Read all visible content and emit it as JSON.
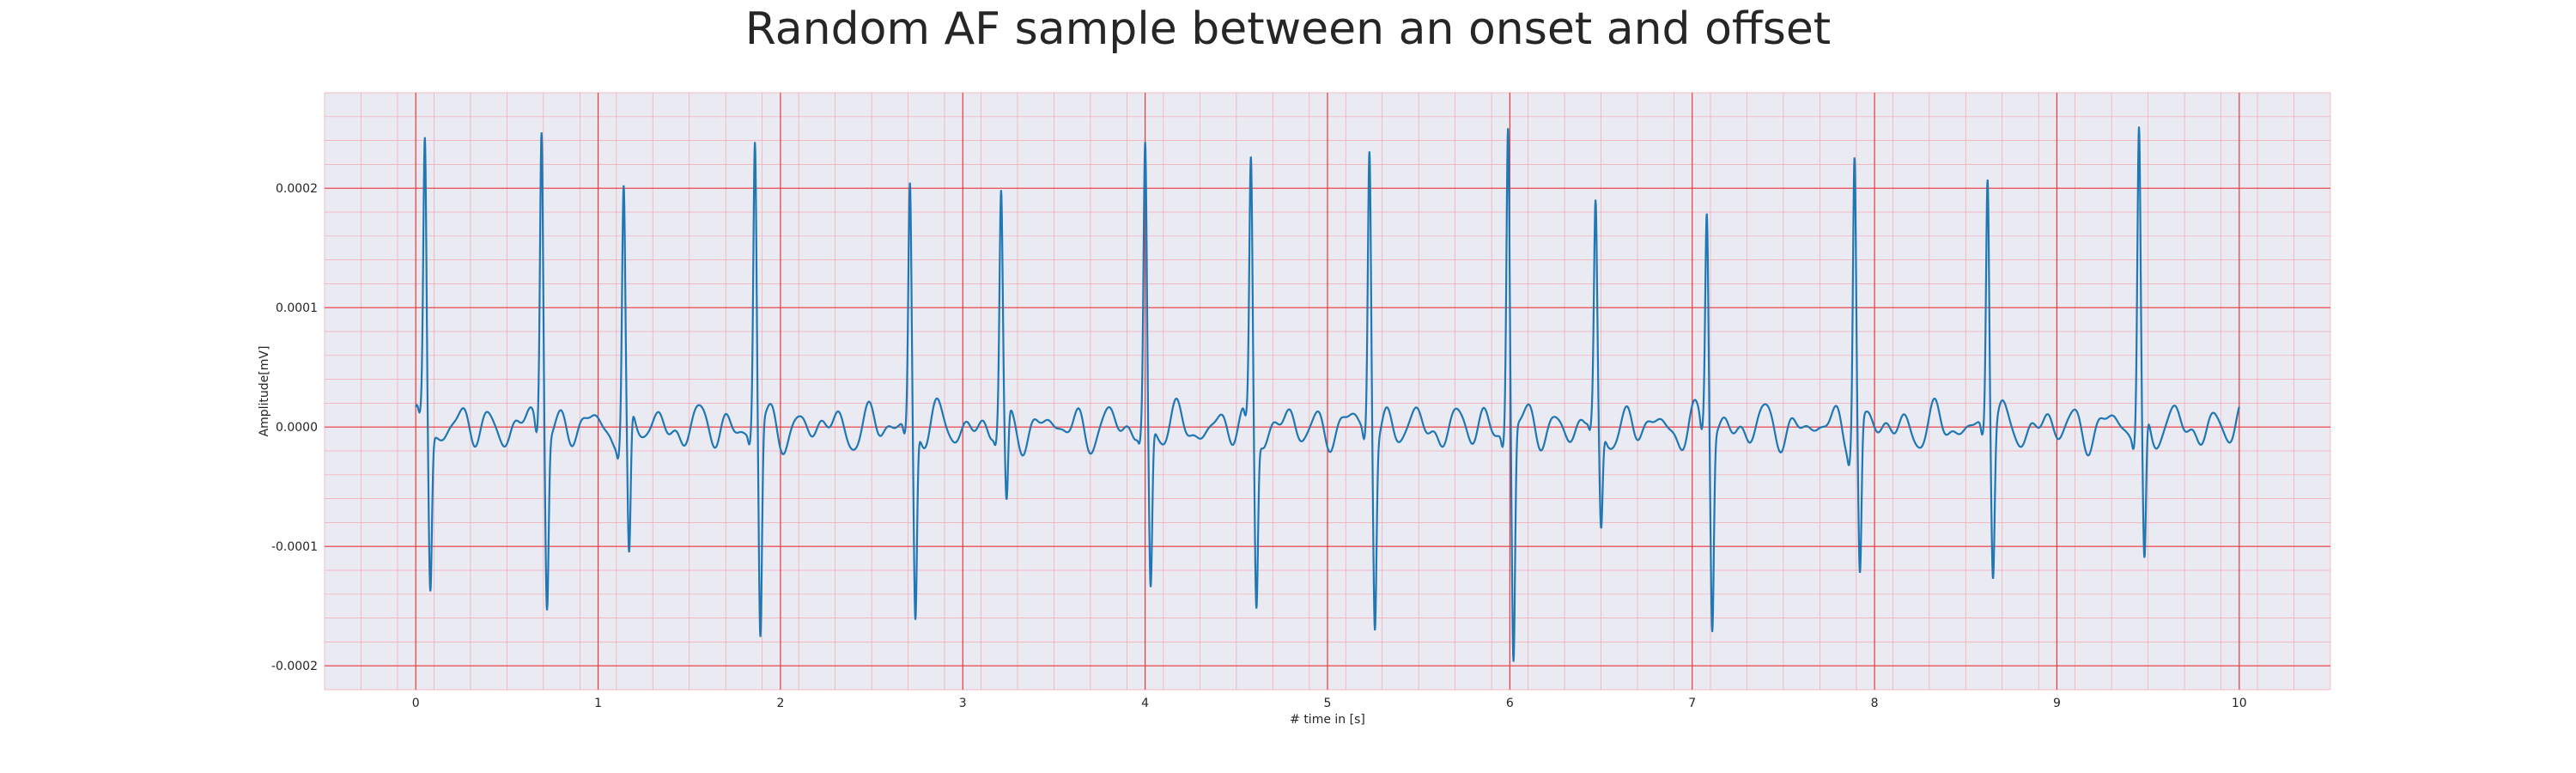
{
  "chart_data": {
    "type": "line",
    "title": "Random AF sample between an onset and offset",
    "xlabel": "# time in [s]",
    "ylabel": "Amplitude[mV]",
    "xlim": [
      -0.5,
      10.5
    ],
    "ylim": [
      -0.00022,
      0.00028
    ],
    "x_ticks": [
      0,
      1,
      2,
      3,
      4,
      5,
      6,
      7,
      8,
      9,
      10
    ],
    "x_tick_labels": [
      "0",
      "1",
      "2",
      "3",
      "4",
      "5",
      "6",
      "7",
      "8",
      "9",
      "10"
    ],
    "y_ticks": [
      -0.0002,
      -0.0001,
      0.0,
      0.0001,
      0.0002
    ],
    "y_tick_labels": [
      "-0.0002",
      "-0.0001",
      "0.0000",
      "0.0001",
      "0.0002"
    ],
    "grid": true,
    "minor_grid": true,
    "colors": {
      "line": "#1f77b4",
      "plot_background": "#eaeaf2",
      "major_grid": "#e8383b",
      "minor_grid": "#f4a7b0"
    },
    "beats": [
      {
        "t": 0.05,
        "peak": 0.00024,
        "trough": -0.00013
      },
      {
        "t": 0.69,
        "peak": 0.00026,
        "trough": -0.00014
      },
      {
        "t": 1.14,
        "peak": 0.0002,
        "trough": -0.000125
      },
      {
        "t": 1.86,
        "peak": 0.00024,
        "trough": -0.00018
      },
      {
        "t": 2.71,
        "peak": 0.000205,
        "trough": -0.00016
      },
      {
        "t": 3.21,
        "peak": 0.00019,
        "trough": -7.8e-05
      },
      {
        "t": 4.0,
        "peak": 0.00023,
        "trough": -0.00014
      },
      {
        "t": 4.58,
        "peak": 0.00022,
        "trough": -0.000145
      },
      {
        "t": 5.23,
        "peak": 0.00024,
        "trough": -0.000155
      },
      {
        "t": 5.99,
        "peak": 0.00026,
        "trough": -0.000195
      },
      {
        "t": 6.47,
        "peak": 0.000175,
        "trough": -9e-05
      },
      {
        "t": 7.08,
        "peak": 0.000185,
        "trough": -0.000163
      },
      {
        "t": 7.89,
        "peak": 0.000237,
        "trough": -0.000127
      },
      {
        "t": 8.62,
        "peak": 0.00022,
        "trough": -0.000117
      },
      {
        "t": 9.45,
        "peak": 0.00025,
        "trough": -0.000125
      }
    ],
    "x_range": [
      0,
      10
    ],
    "baseline_amplitude": 2e-05
  }
}
